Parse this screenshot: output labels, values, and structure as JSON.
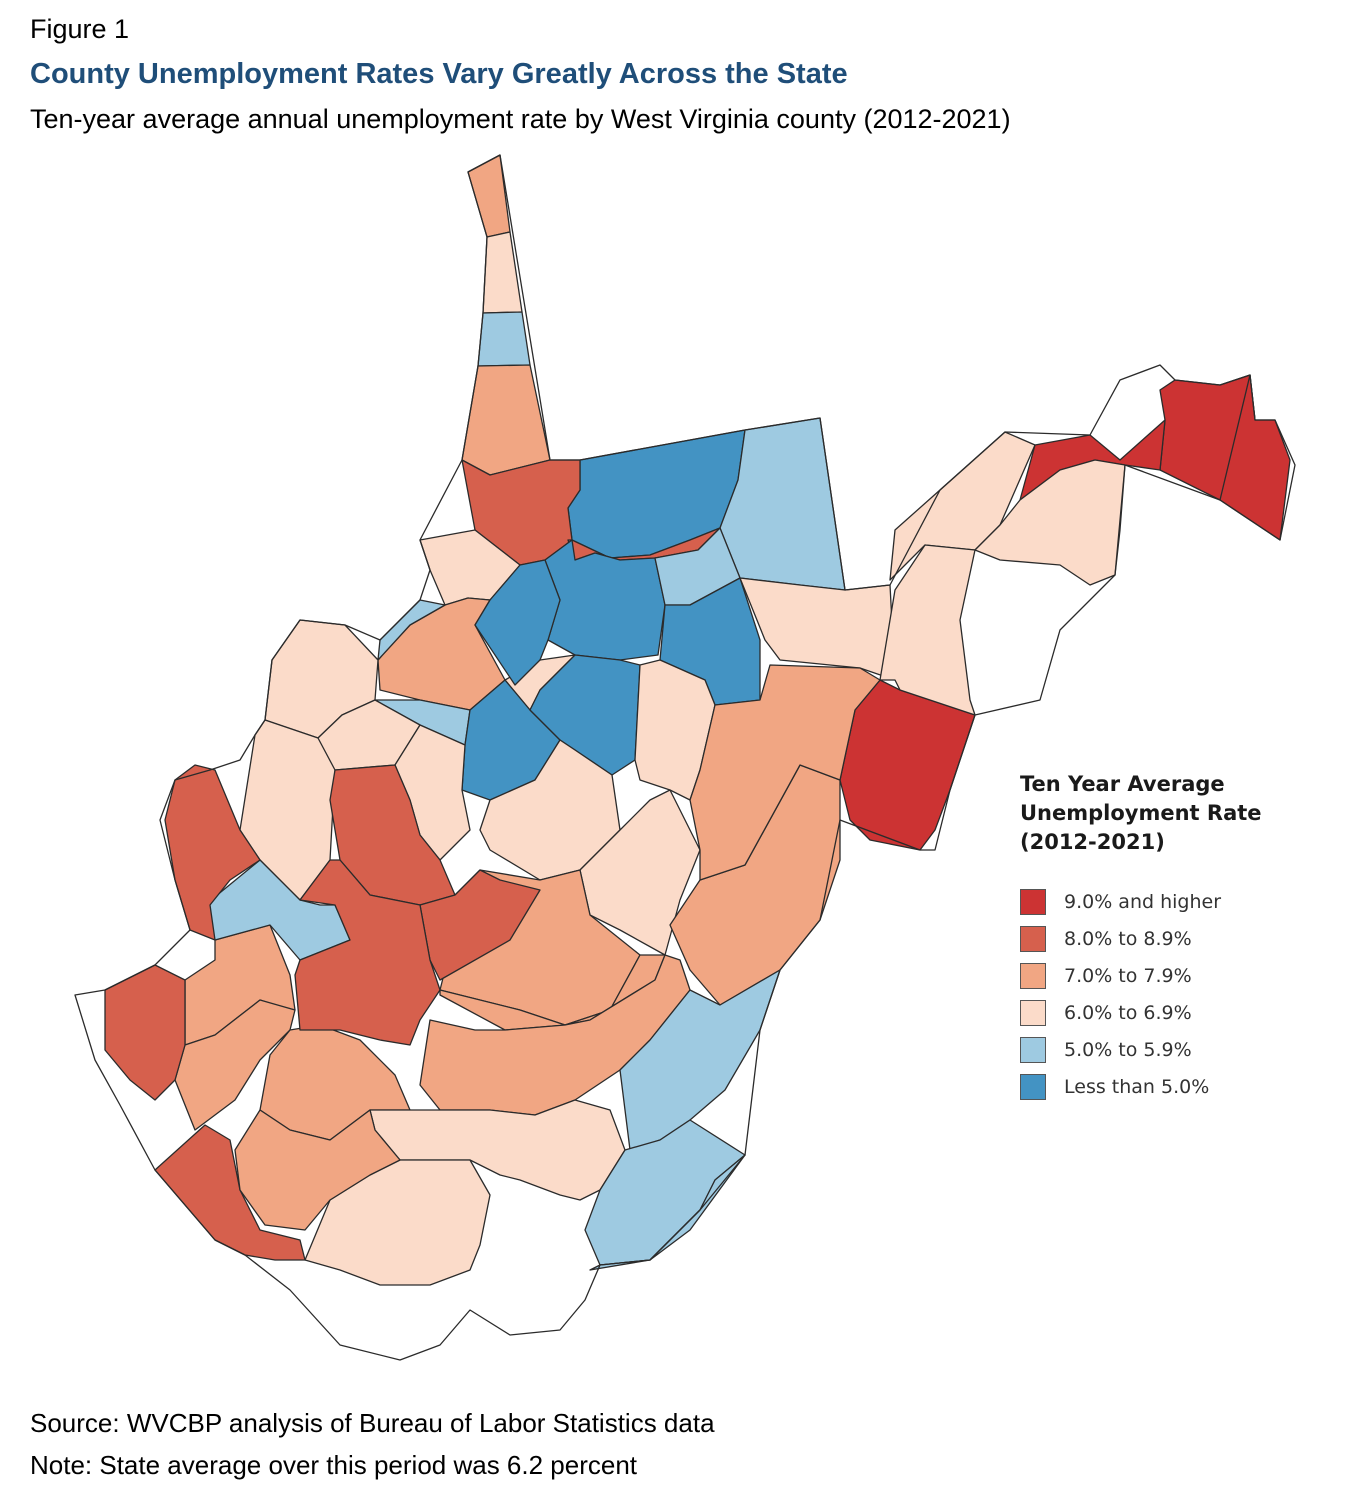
{
  "figure_label": "Figure 1",
  "title": "County Unemployment Rates Vary Greatly Across the State",
  "subtitle": "Ten-year average annual unemployment rate by West Virginia county (2012-2021)",
  "legend": {
    "title_lines": [
      "Ten Year Average",
      "Unemployment Rate",
      "(2012-2021)"
    ],
    "items": [
      {
        "label": "9.0% and higher",
        "color": "#cc3333"
      },
      {
        "label": "8.0% to 8.9%",
        "color": "#d6604d"
      },
      {
        "label": "7.0% to 7.9%",
        "color": "#f1a683"
      },
      {
        "label": "6.0% to 6.9%",
        "color": "#fbdbc9"
      },
      {
        "label": "5.0% to 5.9%",
        "color": "#9ecae1"
      },
      {
        "label": "Less than 5.0%",
        "color": "#4393c3"
      }
    ]
  },
  "map": {
    "regions": [
      {
        "category": 2
      },
      {
        "category": 3
      },
      {
        "category": 4
      },
      {
        "category": 2
      },
      {
        "category": 5
      },
      {
        "category": 4
      },
      {
        "category": 1
      },
      {
        "category": 3
      },
      {
        "category": 1
      },
      {
        "category": 2
      },
      {
        "category": 5
      },
      {
        "category": 4
      },
      {
        "category": 4
      },
      {
        "category": 5
      },
      {
        "category": 3
      },
      {
        "category": 3
      },
      {
        "category": 3
      },
      {
        "category": 5
      },
      {
        "category": 4
      },
      {
        "category": 5
      },
      {
        "category": 5
      },
      {
        "category": 3
      },
      {
        "category": 3
      },
      {
        "category": 3
      },
      {
        "category": 3
      },
      {
        "category": 3
      },
      {
        "category": 1
      },
      {
        "category": 3
      },
      {
        "category": 2
      },
      {
        "category": 2
      },
      {
        "category": 0
      },
      {
        "category": 0
      },
      {
        "category": 3
      },
      {
        "category": 2
      },
      {
        "category": 2
      },
      {
        "category": 1
      },
      {
        "category": 0
      },
      {
        "category": 2
      },
      {
        "category": 2
      },
      {
        "category": 3
      },
      {
        "category": 2
      },
      {
        "category": 1
      },
      {
        "category": 3
      },
      {
        "category": 4
      },
      {
        "category": 4
      },
      {
        "category": 4
      },
      {
        "category": 3
      },
      {
        "category": 1
      },
      {
        "category": 2
      },
      {
        "category": 1
      },
      {
        "category": 1
      },
      {
        "category": 0
      },
      {
        "category": 3
      },
      {
        "category": 2
      },
      {
        "category": 4
      }
    ]
  },
  "source": "Source: WVCBP analysis of Bureau of Labor Statistics data",
  "note": "Note: State average over this period was 6.2 percent"
}
